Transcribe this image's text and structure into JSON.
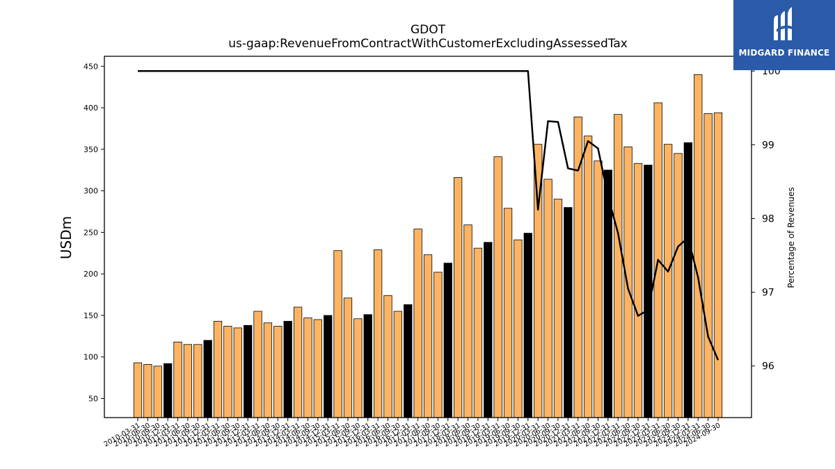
{
  "chart_data": {
    "type": "bar",
    "title": "GDOT",
    "subtitle": "us-gaap:RevenueFromContractWithCustomerExcludingAssessedTax",
    "ylabel": "USDm",
    "y2label": "Percentage of Revenues",
    "ylim": [
      27,
      462
    ],
    "y2lim": [
      95.3,
      100.2
    ],
    "yticks": [
      50,
      100,
      150,
      200,
      250,
      300,
      350,
      400,
      450
    ],
    "y2ticks": [
      96,
      97,
      98,
      99,
      100
    ],
    "bar_colors": {
      "quarter": "#fdb462",
      "fiscal_year_end": "#000000"
    },
    "line_color": "#000000",
    "categories": [
      "2010-03-31",
      "2010-06-30",
      "2010-09-30",
      "2010-12-31",
      "2011-03-31",
      "2011-06-30",
      "2011-09-30",
      "2011-12-31",
      "2012-03-31",
      "2012-06-30",
      "2012-09-30",
      "2012-12-31",
      "2013-03-31",
      "2013-06-30",
      "2013-09-30",
      "2013-12-31",
      "2014-03-31",
      "2014-06-30",
      "2014-09-30",
      "2014-12-31",
      "2015-03-31",
      "2015-06-30",
      "2015-09-30",
      "2015-12-31",
      "2016-03-31",
      "2016-06-30",
      "2016-09-30",
      "2016-12-31",
      "2017-03-31",
      "2017-06-30",
      "2017-09-30",
      "2017-12-31",
      "2018-03-31",
      "2018-06-30",
      "2018-09-30",
      "2018-12-31",
      "2019-03-31",
      "2019-06-30",
      "2019-09-30",
      "2019-12-31",
      "2020-03-31",
      "2020-06-30",
      "2020-09-30",
      "2020-12-31",
      "2021-03-31",
      "2021-06-30",
      "2021-09-30",
      "2021-12-31",
      "2022-03-31",
      "2022-06-30",
      "2022-09-30",
      "2022-12-31",
      "2023-03-31",
      "2023-06-30",
      "2023-09-30",
      "2023-12-31",
      "2024-03-31",
      "2024-06-30",
      "2024-09-30"
    ],
    "values": [
      93,
      91,
      89,
      92,
      118,
      115,
      115,
      120,
      143,
      137,
      135,
      138,
      155,
      141,
      137,
      143,
      160,
      147,
      145,
      150,
      228,
      171,
      146,
      151,
      229,
      174,
      155,
      163,
      254,
      223,
      202,
      213,
      316,
      259,
      231,
      238,
      341,
      279,
      241,
      249,
      356,
      314,
      290,
      280,
      389,
      366,
      336,
      325,
      392,
      353,
      333,
      331,
      406,
      356,
      345,
      358,
      440,
      393,
      394
    ],
    "fiscal_year_end_flags": [
      0,
      0,
      0,
      1,
      0,
      0,
      0,
      1,
      0,
      0,
      0,
      1,
      0,
      0,
      0,
      1,
      0,
      0,
      0,
      1,
      0,
      0,
      0,
      1,
      0,
      0,
      0,
      1,
      0,
      0,
      0,
      1,
      0,
      0,
      0,
      1,
      0,
      0,
      0,
      1,
      0,
      0,
      0,
      1,
      0,
      0,
      0,
      1,
      0,
      0,
      0,
      1,
      0,
      0,
      0,
      1,
      0,
      0,
      0
    ],
    "series": [
      {
        "name": "Percentage of Revenues",
        "values": [
          100,
          100,
          100,
          100,
          100,
          100,
          100,
          100,
          100,
          100,
          100,
          100,
          100,
          100,
          100,
          100,
          100,
          100,
          100,
          100,
          100,
          100,
          100,
          100,
          100,
          100,
          100,
          100,
          100,
          100,
          100,
          100,
          100,
          100,
          100,
          100,
          100,
          100,
          100,
          100,
          98.12,
          99.32,
          99.31,
          98.68,
          98.65,
          99.05,
          98.95,
          98.3,
          97.8,
          97.05,
          96.68,
          96.76,
          97.44,
          97.28,
          97.62,
          97.74,
          97.2,
          96.4,
          96.08
        ]
      }
    ]
  },
  "logo": {
    "text": "MIDGARD FINANCE"
  }
}
